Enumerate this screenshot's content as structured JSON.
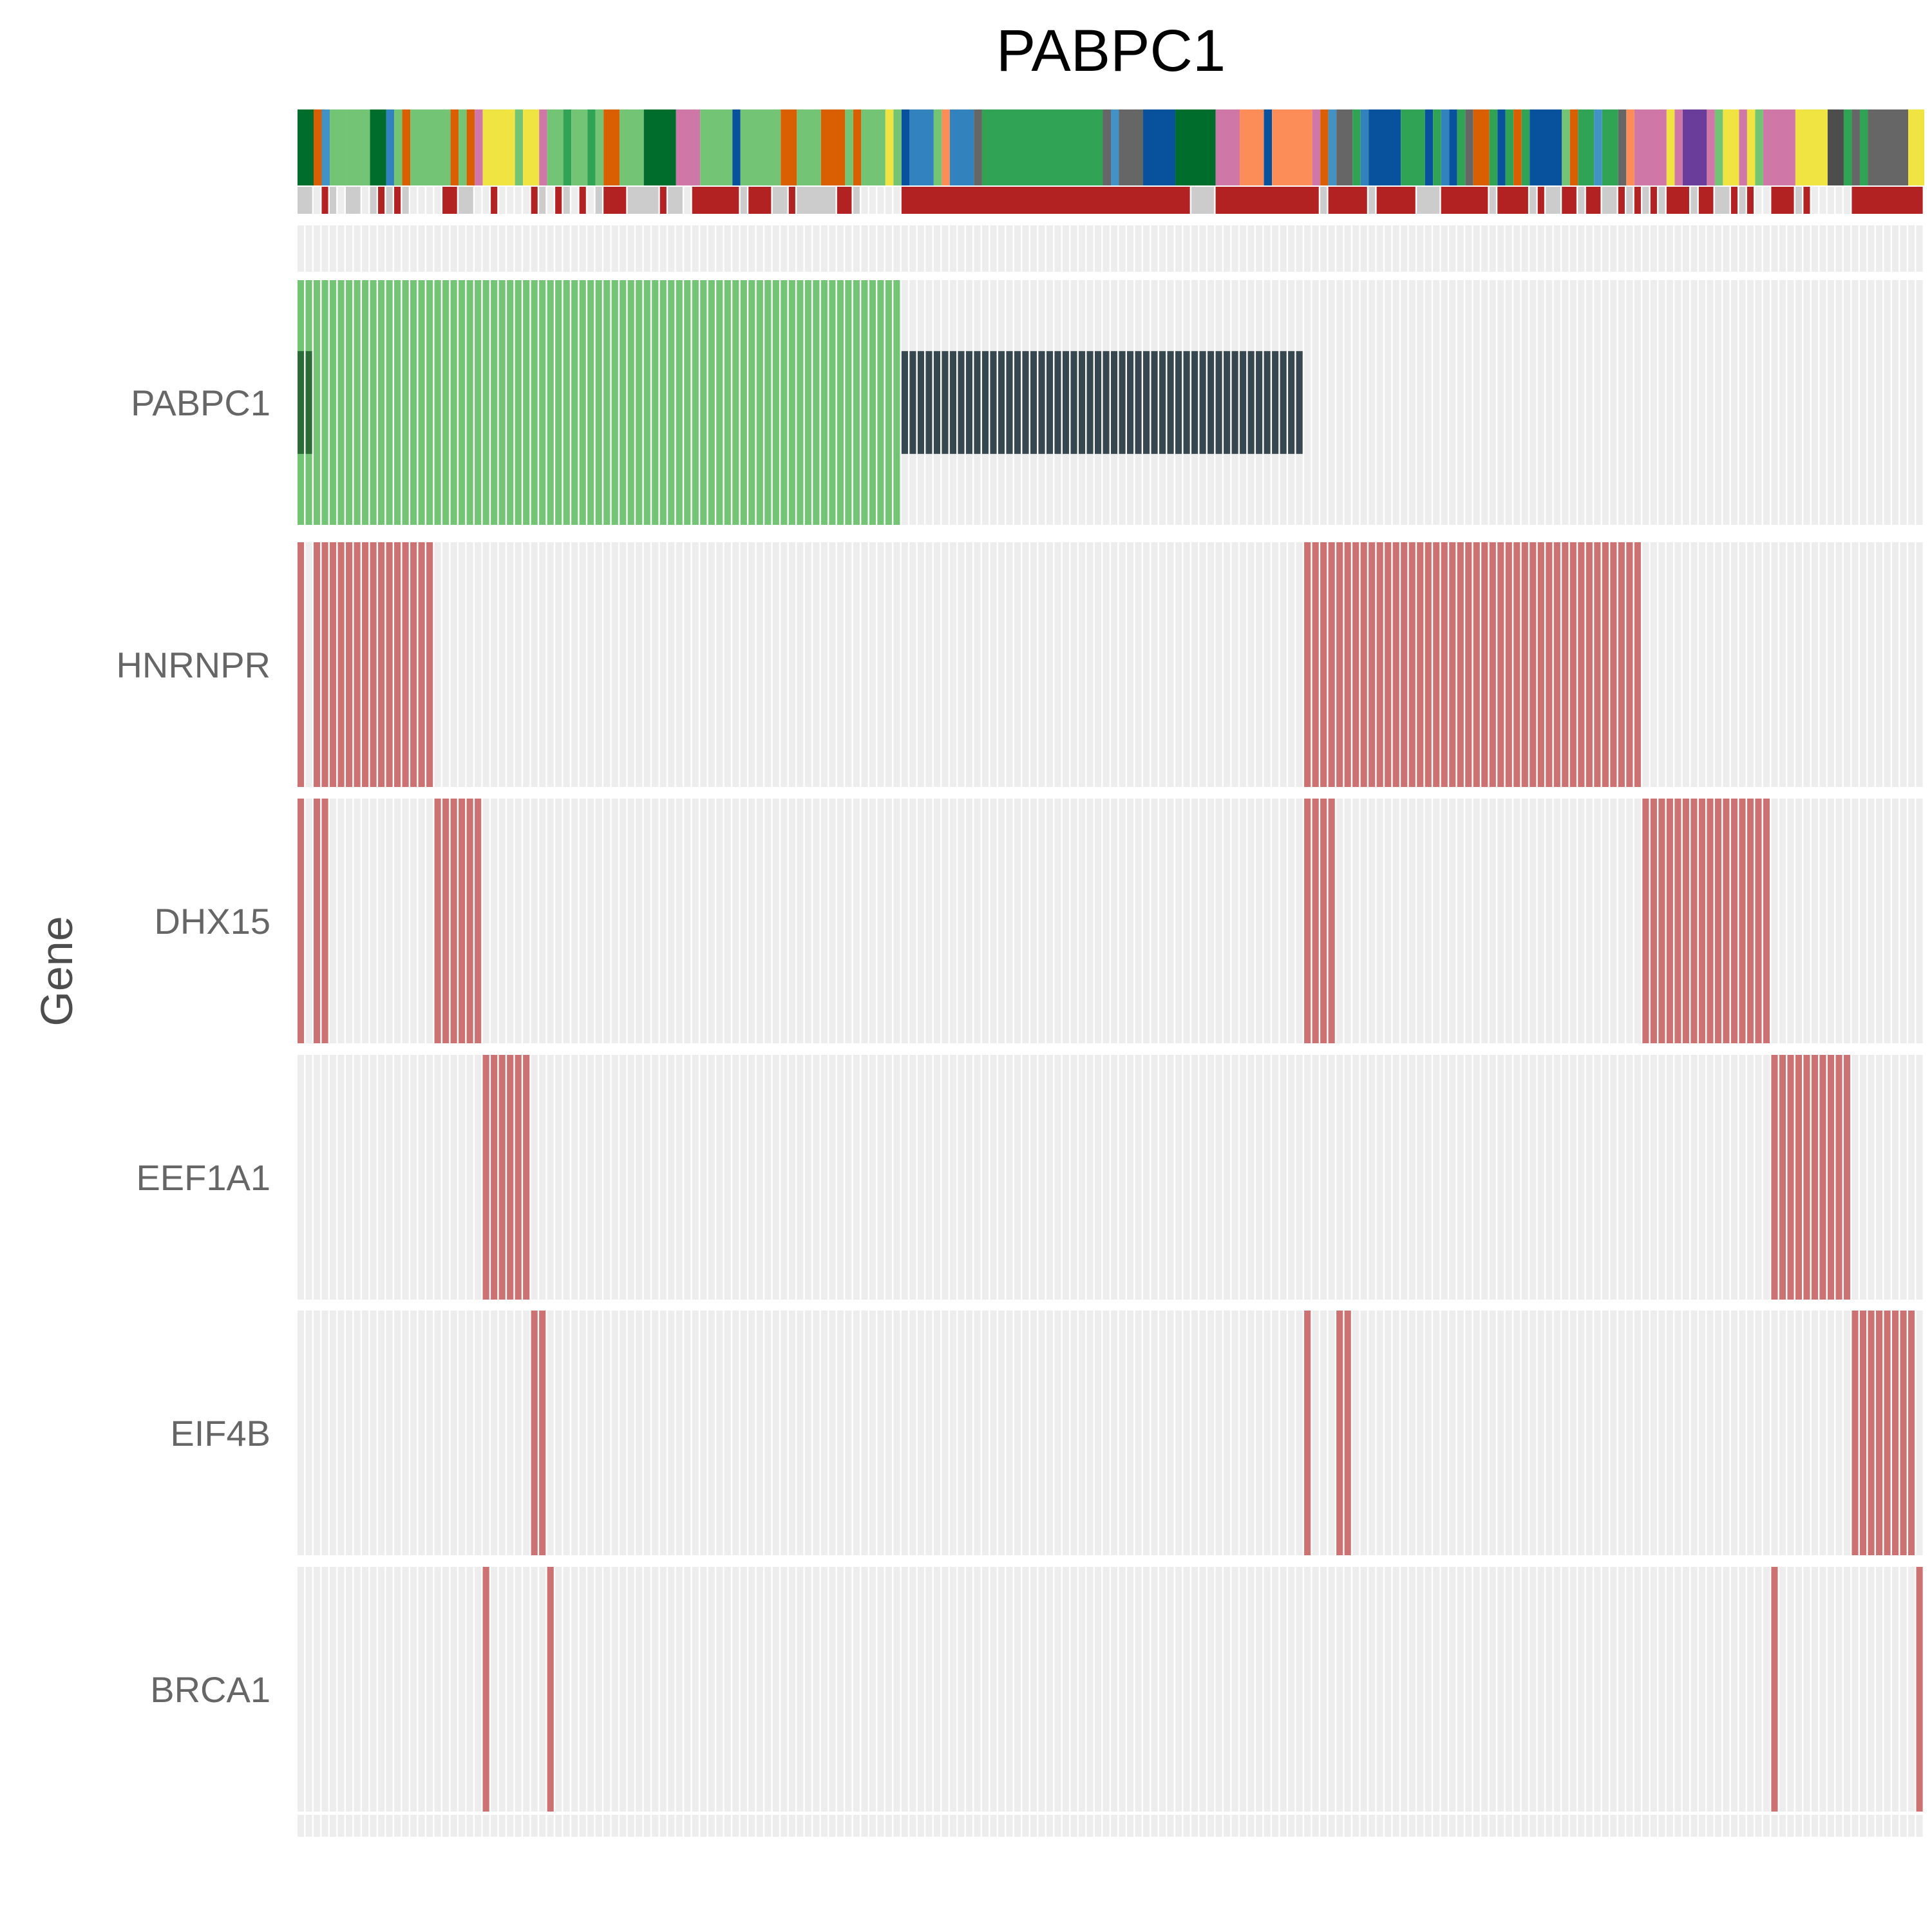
{
  "chart_data": {
    "type": "heatmap",
    "title": "PABPC1",
    "ylabel": "Gene",
    "n_samples": 202,
    "genes": [
      "PABPC1",
      "HNRNPR",
      "DHX15",
      "EEF1A1",
      "EIF4B",
      "BRCA1"
    ],
    "legend": "none",
    "grid": true,
    "colors": {
      "background_cell": "#ededed",
      "amplification": "#74c476",
      "dark_amplification": "#2b6b35",
      "deletion_like": "#37474f",
      "coexpression": "#cd7272",
      "annotation_gray": "#cccccc",
      "annotation_red": "#b22222"
    },
    "rows": [
      {
        "gene": "PABPC1",
        "layers": [
          {
            "ranges": [
              [
                0,
                74
              ]
            ],
            "color": "amplification",
            "height": "full"
          },
          {
            "ranges": [
              [
                0,
                1
              ]
            ],
            "color": "dark_amplification",
            "height": "center"
          },
          {
            "ranges": [
              [
                75,
                124
              ]
            ],
            "color": "deletion_like",
            "height": "center"
          }
        ]
      },
      {
        "gene": "HNRNPR",
        "layers": [
          {
            "ranges": [
              [
                0,
                0
              ],
              [
                2,
                16
              ],
              [
                125,
                166
              ]
            ],
            "color": "coexpression",
            "height": "full"
          }
        ]
      },
      {
        "gene": "DHX15",
        "layers": [
          {
            "ranges": [
              [
                0,
                0
              ],
              [
                2,
                3
              ],
              [
                17,
                22
              ],
              [
                125,
                128
              ],
              [
                167,
                182
              ]
            ],
            "color": "coexpression",
            "height": "full"
          }
        ]
      },
      {
        "gene": "EEF1A1",
        "layers": [
          {
            "ranges": [
              [
                23,
                28
              ],
              [
                183,
                192
              ]
            ],
            "color": "coexpression",
            "height": "full"
          }
        ]
      },
      {
        "gene": "EIF4B",
        "layers": [
          {
            "ranges": [
              [
                29,
                30
              ],
              [
                125,
                125
              ],
              [
                129,
                130
              ],
              [
                193,
                200
              ]
            ],
            "color": "coexpression",
            "height": "full"
          }
        ]
      },
      {
        "gene": "BRCA1",
        "layers": [
          {
            "ranges": [
              [
                23,
                23
              ],
              [
                31,
                31
              ],
              [
                183,
                183
              ],
              [
                201,
                201
              ]
            ],
            "color": "coexpression",
            "height": "full"
          }
        ]
      }
    ],
    "annotation_top": [
      [
        0,
        1,
        "#006d2c"
      ],
      [
        2,
        2,
        "#d95f02"
      ],
      [
        3,
        3,
        "#4292c6"
      ],
      [
        4,
        5,
        "#74c476"
      ],
      [
        6,
        8,
        "#74c476"
      ],
      [
        9,
        10,
        "#006d2c"
      ],
      [
        11,
        11,
        "#3182bd"
      ],
      [
        12,
        12,
        "#74c476"
      ],
      [
        13,
        13,
        "#d95f02"
      ],
      [
        14,
        18,
        "#74c476"
      ],
      [
        19,
        19,
        "#d95f02"
      ],
      [
        20,
        20,
        "#74c476"
      ],
      [
        21,
        21,
        "#d95f02"
      ],
      [
        22,
        22,
        "#cf77a7"
      ],
      [
        23,
        26,
        "#f0e442"
      ],
      [
        27,
        27,
        "#74c476"
      ],
      [
        28,
        29,
        "#f0e442"
      ],
      [
        30,
        30,
        "#cf77a7"
      ],
      [
        31,
        32,
        "#74c476"
      ],
      [
        33,
        33,
        "#31a354"
      ],
      [
        34,
        35,
        "#74c476"
      ],
      [
        36,
        36,
        "#31a354"
      ],
      [
        37,
        37,
        "#74c476"
      ],
      [
        38,
        39,
        "#d95f02"
      ],
      [
        40,
        42,
        "#74c476"
      ],
      [
        43,
        46,
        "#006d2c"
      ],
      [
        47,
        49,
        "#cf77a7"
      ],
      [
        50,
        53,
        "#74c476"
      ],
      [
        54,
        54,
        "#08519c"
      ],
      [
        55,
        59,
        "#74c476"
      ],
      [
        60,
        61,
        "#d95f02"
      ],
      [
        62,
        64,
        "#74c476"
      ],
      [
        65,
        67,
        "#d95f02"
      ],
      [
        68,
        68,
        "#74c476"
      ],
      [
        69,
        69,
        "#d95f02"
      ],
      [
        70,
        72,
        "#74c476"
      ],
      [
        73,
        73,
        "#f0e442"
      ],
      [
        74,
        74,
        "#74c476"
      ],
      [
        75,
        75,
        "#08519c"
      ],
      [
        76,
        78,
        "#3182bd"
      ],
      [
        79,
        79,
        "#74c476"
      ],
      [
        80,
        80,
        "#fc8d59"
      ],
      [
        81,
        83,
        "#3182bd"
      ],
      [
        84,
        84,
        "#666666"
      ],
      [
        85,
        99,
        "#31a354"
      ],
      [
        100,
        100,
        "#666666"
      ],
      [
        101,
        101,
        "#4292c6"
      ],
      [
        102,
        104,
        "#666666"
      ],
      [
        105,
        108,
        "#08519c"
      ],
      [
        109,
        113,
        "#006d2c"
      ],
      [
        114,
        116,
        "#cf77a7"
      ],
      [
        117,
        119,
        "#fc8d59"
      ],
      [
        120,
        120,
        "#08519c"
      ],
      [
        121,
        125,
        "#fc8d59"
      ],
      [
        126,
        126,
        "#cf77a7"
      ],
      [
        127,
        127,
        "#d95f02"
      ],
      [
        128,
        128,
        "#4292c6"
      ],
      [
        129,
        130,
        "#666666"
      ],
      [
        131,
        131,
        "#31a354"
      ],
      [
        132,
        132,
        "#3182bd"
      ],
      [
        133,
        136,
        "#08519c"
      ],
      [
        137,
        139,
        "#31a354"
      ],
      [
        140,
        140,
        "#08519c"
      ],
      [
        141,
        141,
        "#31a354"
      ],
      [
        142,
        142,
        "#3182bd"
      ],
      [
        143,
        143,
        "#08519c"
      ],
      [
        144,
        144,
        "#31a354"
      ],
      [
        145,
        145,
        "#666666"
      ],
      [
        146,
        147,
        "#d95f02"
      ],
      [
        148,
        148,
        "#31a354"
      ],
      [
        149,
        149,
        "#08519c"
      ],
      [
        150,
        150,
        "#31a354"
      ],
      [
        151,
        151,
        "#d95f02"
      ],
      [
        152,
        152,
        "#31a354"
      ],
      [
        153,
        156,
        "#08519c"
      ],
      [
        157,
        157,
        "#74c476"
      ],
      [
        158,
        158,
        "#d95f02"
      ],
      [
        159,
        160,
        "#31a354"
      ],
      [
        161,
        161,
        "#4292c6"
      ],
      [
        162,
        163,
        "#31a354"
      ],
      [
        164,
        164,
        "#666666"
      ],
      [
        165,
        165,
        "#fc8d59"
      ],
      [
        166,
        169,
        "#cf77a7"
      ],
      [
        170,
        170,
        "#f0e442"
      ],
      [
        171,
        171,
        "#cf77a7"
      ],
      [
        172,
        174,
        "#6a3d9a"
      ],
      [
        175,
        175,
        "#cf77a7"
      ],
      [
        176,
        176,
        "#74c476"
      ],
      [
        177,
        178,
        "#f0e442"
      ],
      [
        179,
        179,
        "#cf77a7"
      ],
      [
        180,
        180,
        "#f0e442"
      ],
      [
        181,
        181,
        "#74c476"
      ],
      [
        182,
        185,
        "#cf77a7"
      ],
      [
        186,
        189,
        "#f0e442"
      ],
      [
        190,
        191,
        "#4d4d4d"
      ],
      [
        192,
        192,
        "#31a354"
      ],
      [
        193,
        193,
        "#666666"
      ],
      [
        194,
        194,
        "#31a354"
      ],
      [
        195,
        199,
        "#666666"
      ],
      [
        200,
        201,
        "#f0e442"
      ]
    ],
    "annotation_mid": [
      [
        0,
        1,
        "#cccccc"
      ],
      [
        3,
        3,
        "#b22222"
      ],
      [
        4,
        4,
        "#cccccc"
      ],
      [
        6,
        7,
        "#cccccc"
      ],
      [
        9,
        9,
        "#cccccc"
      ],
      [
        10,
        10,
        "#b22222"
      ],
      [
        11,
        11,
        "#cccccc"
      ],
      [
        12,
        12,
        "#b22222"
      ],
      [
        13,
        13,
        "#cccccc"
      ],
      [
        18,
        19,
        "#b22222"
      ],
      [
        20,
        21,
        "#cccccc"
      ],
      [
        24,
        24,
        "#b22222"
      ],
      [
        29,
        29,
        "#b22222"
      ],
      [
        30,
        30,
        "#cccccc"
      ],
      [
        32,
        32,
        "#b22222"
      ],
      [
        33,
        33,
        "#cccccc"
      ],
      [
        35,
        35,
        "#b22222"
      ],
      [
        37,
        37,
        "#cccccc"
      ],
      [
        38,
        40,
        "#b22222"
      ],
      [
        41,
        44,
        "#cccccc"
      ],
      [
        45,
        45,
        "#b22222"
      ],
      [
        46,
        47,
        "#cccccc"
      ],
      [
        49,
        54,
        "#b22222"
      ],
      [
        55,
        55,
        "#cccccc"
      ],
      [
        56,
        58,
        "#b22222"
      ],
      [
        59,
        60,
        "#cccccc"
      ],
      [
        61,
        61,
        "#b22222"
      ],
      [
        62,
        66,
        "#cccccc"
      ],
      [
        67,
        68,
        "#b22222"
      ],
      [
        69,
        69,
        "#cccccc"
      ],
      [
        75,
        110,
        "#b22222"
      ],
      [
        111,
        113,
        "#cccccc"
      ],
      [
        114,
        126,
        "#b22222"
      ],
      [
        127,
        127,
        "#cccccc"
      ],
      [
        128,
        132,
        "#b22222"
      ],
      [
        133,
        133,
        "#cccccc"
      ],
      [
        134,
        138,
        "#b22222"
      ],
      [
        139,
        141,
        "#cccccc"
      ],
      [
        142,
        147,
        "#b22222"
      ],
      [
        148,
        148,
        "#cccccc"
      ],
      [
        149,
        152,
        "#b22222"
      ],
      [
        153,
        153,
        "#cccccc"
      ],
      [
        154,
        154,
        "#b22222"
      ],
      [
        155,
        156,
        "#cccccc"
      ],
      [
        157,
        158,
        "#b22222"
      ],
      [
        159,
        159,
        "#cccccc"
      ],
      [
        160,
        161,
        "#b22222"
      ],
      [
        162,
        163,
        "#cccccc"
      ],
      [
        164,
        164,
        "#b22222"
      ],
      [
        165,
        165,
        "#cccccc"
      ],
      [
        166,
        166,
        "#b22222"
      ],
      [
        167,
        167,
        "#cccccc"
      ],
      [
        168,
        168,
        "#b22222"
      ],
      [
        169,
        169,
        "#cccccc"
      ],
      [
        170,
        172,
        "#b22222"
      ],
      [
        173,
        173,
        "#cccccc"
      ],
      [
        174,
        175,
        "#b22222"
      ],
      [
        176,
        177,
        "#cccccc"
      ],
      [
        178,
        178,
        "#b22222"
      ],
      [
        179,
        179,
        "#cccccc"
      ],
      [
        180,
        180,
        "#b22222"
      ],
      [
        183,
        185,
        "#b22222"
      ],
      [
        186,
        186,
        "#cccccc"
      ],
      [
        187,
        187,
        "#b22222"
      ],
      [
        193,
        201,
        "#b22222"
      ]
    ]
  }
}
